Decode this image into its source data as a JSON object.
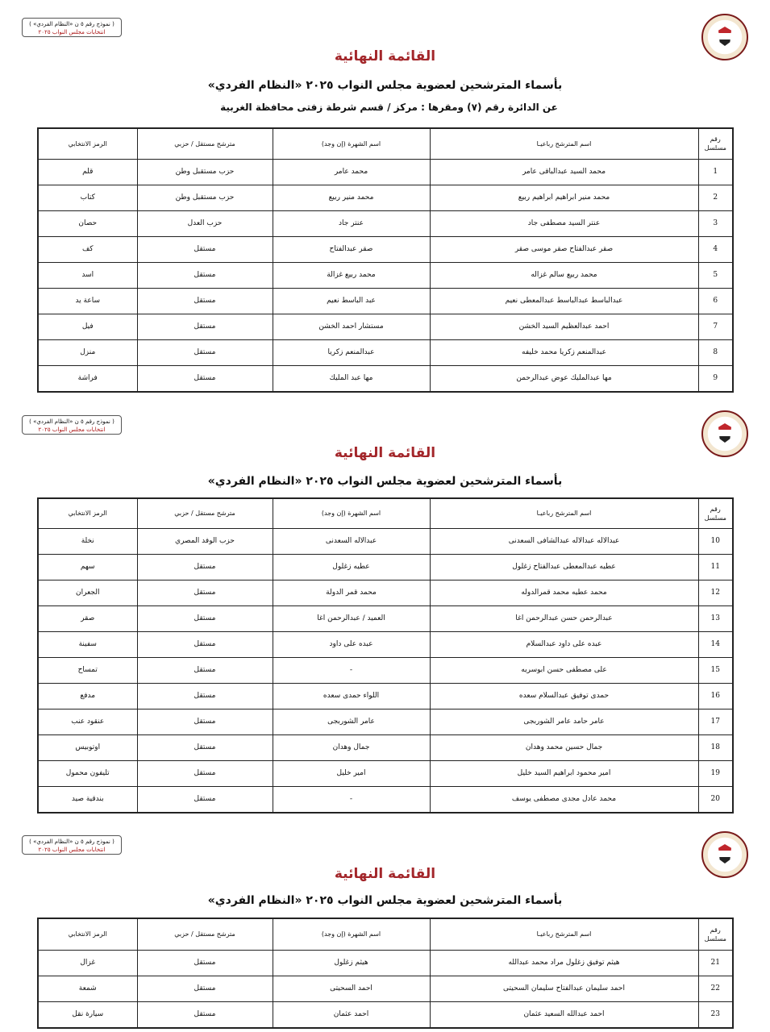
{
  "stamp": {
    "line1": "( نموذج رقم ٥ ن «النظام الفردي» )",
    "line2": "انتخابات مجلس النواب ٢٠٢٥"
  },
  "logo": {
    "icon": "egypt-eagle-emblem"
  },
  "title": "القائمة النهائية",
  "subtitle": "بأسماء المترشحين لعضوية مجلس النواب ٢٠٢٥ «النظام الفردي»",
  "district": "عن الدائرة رقم  (٧)   ومقرها : مركز / قسم شرطة  زفتى   محافظة  الغربية",
  "columns": {
    "num": "رقم مسلسل",
    "name": "اسم المترشح رباعيـا",
    "nickname": "اسم الشهرة (إن وجد)",
    "type": "مترشح مستقل / حزبي",
    "symbol": "الرمز الانتخابي"
  },
  "pages": [
    {
      "rows": [
        {
          "num": "1",
          "name": "محمد السيد عبدالباقى عامر",
          "nickname": "محمد عامر",
          "type": "حزب مستقبل وطن",
          "symbol": "قلم"
        },
        {
          "num": "2",
          "name": "محمد منير ابراهيم ابراهيم ربيع",
          "nickname": "محمد منير ربيع",
          "type": "حزب مستقبل وطن",
          "symbol": "كتاب"
        },
        {
          "num": "3",
          "name": "عنتر السيد مصطفى جاد",
          "nickname": "عنتر جاد",
          "type": "حزب العدل",
          "symbol": "حصان"
        },
        {
          "num": "4",
          "name": "صقر عبدالفتاح صقر موسى صقر",
          "nickname": "صقر عبدالفتاح",
          "type": "مستقل",
          "symbol": "كف"
        },
        {
          "num": "5",
          "name": "محمد ربيع سالم غزاله",
          "nickname": "محمد ربيع غزالة",
          "type": "مستقل",
          "symbol": "اسد"
        },
        {
          "num": "6",
          "name": "عبدالباسط عبدالباسط عبدالمعطى نعيم",
          "nickname": "عبد الباسط نعيم",
          "type": "مستقل",
          "symbol": "ساعة يد"
        },
        {
          "num": "7",
          "name": "احمد عبدالعظيم السيد الخشن",
          "nickname": "مستشار احمد الخشن",
          "type": "مستقل",
          "symbol": "فيل"
        },
        {
          "num": "8",
          "name": "عبدالمنعم زكريا محمد خليفه",
          "nickname": "عبدالمنعم زكريا",
          "type": "مستقل",
          "symbol": "منزل"
        },
        {
          "num": "9",
          "name": "مها عبدالمليك عوض عبدالرحمن",
          "nickname": "مها عبد المليك",
          "type": "مستقل",
          "symbol": "فراشة"
        }
      ]
    },
    {
      "rows": [
        {
          "num": "10",
          "name": "عبدالاله عبدالاله عبدالشافى السعدنى",
          "nickname": "عبدالاله السعدنى",
          "type": "حزب الوفد المصري",
          "symbol": "نخلة"
        },
        {
          "num": "11",
          "name": "عطيه عبدالمعطى عبدالفتاح زغلول",
          "nickname": "عطيه زغلول",
          "type": "مستقل",
          "symbol": "سهم"
        },
        {
          "num": "12",
          "name": "محمد عطيه محمد قمرالدوله",
          "nickname": "محمد قمر الدولة",
          "type": "مستقل",
          "symbol": "الجعران"
        },
        {
          "num": "13",
          "name": "عبدالرحمن حسن عبدالرحمن اغا",
          "nickname": "العميد / عبدالرحمن اغا",
          "type": "مستقل",
          "symbol": "صقر"
        },
        {
          "num": "14",
          "name": "عبده على داود عبدالسلام",
          "nickname": "عبده على داود",
          "type": "مستقل",
          "symbol": "سفينة"
        },
        {
          "num": "15",
          "name": "على مصطفى حسن ابوسريه",
          "nickname": "-",
          "type": "مستقل",
          "symbol": "تمساح"
        },
        {
          "num": "16",
          "name": "حمدى توفيق عبدالسلام سعده",
          "nickname": "اللواء حمدى سعده",
          "type": "مستقل",
          "symbol": "مدفع"
        },
        {
          "num": "17",
          "name": "عامر حامد عامر الشوربجى",
          "nickname": "عامر الشوربجى",
          "type": "مستقل",
          "symbol": "عنقود عنب"
        },
        {
          "num": "18",
          "name": "جمال حسين محمد وهدان",
          "nickname": "جمال وهدان",
          "type": "مستقل",
          "symbol": "اوتوبيس"
        },
        {
          "num": "19",
          "name": "امير محمود ابراهيم السيد خليل",
          "nickname": "امير خليل",
          "type": "مستقل",
          "symbol": "تليفون محمول"
        },
        {
          "num": "20",
          "name": "محمد عادل مجدى مصطفى يوسف",
          "nickname": "-",
          "type": "مستقل",
          "symbol": "بندقية صيد"
        }
      ]
    },
    {
      "rows": [
        {
          "num": "21",
          "name": "هيثم توفيق زغلول مراد محمد عبدالله",
          "nickname": "هيثم زغلول",
          "type": "مستقل",
          "symbol": "غزال"
        },
        {
          "num": "22",
          "name": "احمد سليمان عبدالفتاح سليمان السحيتى",
          "nickname": "احمد السحيتى",
          "type": "مستقل",
          "symbol": "شمعة"
        },
        {
          "num": "23",
          "name": "احمد عبدالله السعيد عثمان",
          "nickname": "احمد عثمان",
          "type": "مستقل",
          "symbol": "سيارة نقل"
        }
      ]
    }
  ]
}
